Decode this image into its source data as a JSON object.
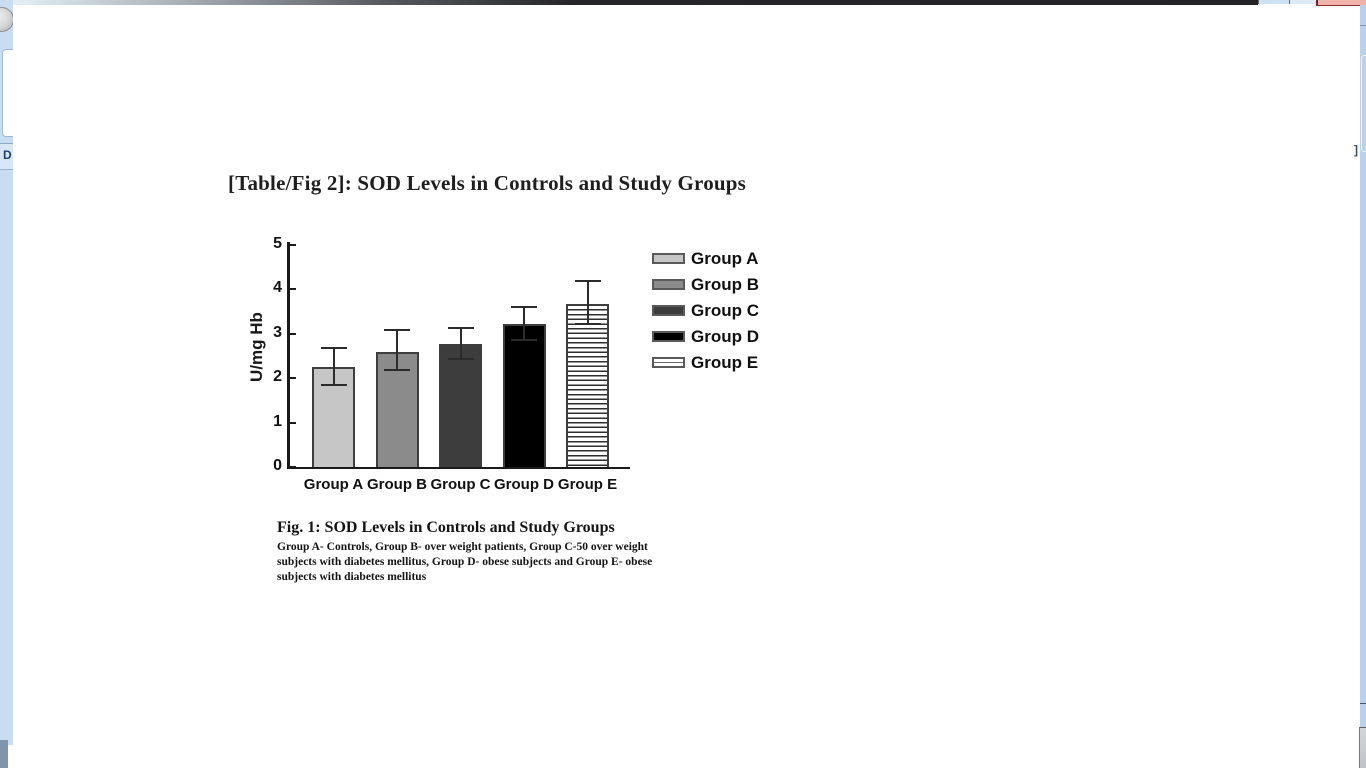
{
  "window": {
    "chrome_fragments": {
      "left_button_glyph": "D",
      "right_bracket_glyph": "]",
      "close_button_color": "#efb3aa",
      "frame_blue": "#c9ddf1"
    }
  },
  "document": {
    "heading": "[Table/Fig 2]: SOD Levels in Controls and Study Groups",
    "figure_caption": {
      "title": "Fig. 1: SOD Levels in Controls and Study Groups",
      "description_lines": [
        "Group A- Controls, Group B- over weight patients, Group C-50 over weight",
        "subjects with diabetes mellitus,  Group D- obese subjects and Group E- obese",
        "subjects with diabetes mellitus"
      ]
    }
  },
  "chart_data": {
    "type": "bar",
    "title": "",
    "xlabel": "",
    "ylabel": "U/mg Hb",
    "ylim": [
      0,
      5
    ],
    "yticks": [
      0,
      1,
      2,
      3,
      4,
      5
    ],
    "grid": false,
    "categories": [
      "Group A",
      "Group B",
      "Group C",
      "Group D",
      "Group E"
    ],
    "values": [
      2.25,
      2.6,
      2.78,
      3.22,
      3.68
    ],
    "error_high": [
      2.67,
      3.08,
      3.13,
      3.6,
      4.18
    ],
    "error_low": [
      1.85,
      2.18,
      2.44,
      2.85,
      3.22
    ],
    "bar_fills": [
      "#c6c6c6",
      "#8b8b8b",
      "#3d3d3d",
      "#000000",
      "striped"
    ],
    "bar_border_color": "#3e3e3e",
    "error_bar_color": "#2b2b2b",
    "legend": {
      "position": "right",
      "entries": [
        {
          "label": "Group A",
          "fill": "#c6c6c6"
        },
        {
          "label": "Group B",
          "fill": "#8b8b8b"
        },
        {
          "label": "Group C",
          "fill": "#3d3d3d"
        },
        {
          "label": "Group D",
          "fill": "#000000"
        },
        {
          "label": "Group E",
          "fill": "striped"
        }
      ]
    }
  }
}
